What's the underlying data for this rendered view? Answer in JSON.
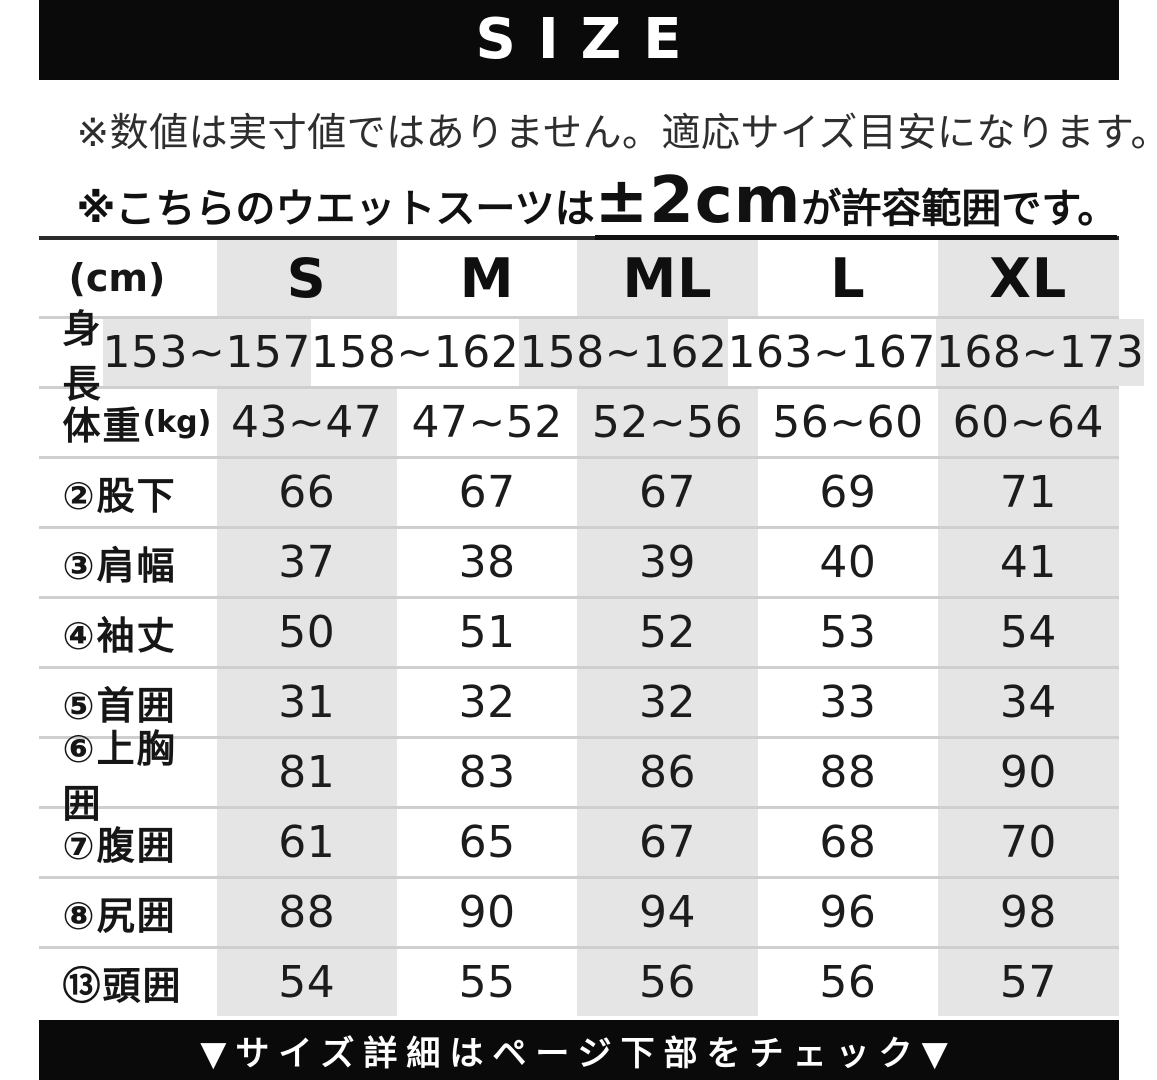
{
  "banner_top": {
    "title": "SIZE"
  },
  "notes": {
    "line1": "※数値は実寸値ではありません。適応サイズ目安になります。",
    "line2_prefix": "※こちらのウエットスーツは",
    "line2_highlight": "±2cm",
    "line2_suffix": "が許容範囲です。"
  },
  "size_table": {
    "unit_label": "(cm)",
    "columns": [
      "S",
      "M",
      "ML",
      "L",
      "XL"
    ],
    "rows": [
      {
        "label": "身長",
        "sub": "",
        "values": [
          "153~157",
          "158~162",
          "158~162",
          "163~167",
          "168~173"
        ]
      },
      {
        "label": "体重",
        "sub": "(kg)",
        "values": [
          "43~47",
          "47~52",
          "52~56",
          "56~60",
          "60~64"
        ]
      },
      {
        "label": "②股下",
        "sub": "",
        "values": [
          "66",
          "67",
          "67",
          "69",
          "71"
        ]
      },
      {
        "label": "③肩幅",
        "sub": "",
        "values": [
          "37",
          "38",
          "39",
          "40",
          "41"
        ]
      },
      {
        "label": "④袖丈",
        "sub": "",
        "values": [
          "50",
          "51",
          "52",
          "53",
          "54"
        ]
      },
      {
        "label": "⑤首囲",
        "sub": "",
        "values": [
          "31",
          "32",
          "32",
          "33",
          "34"
        ]
      },
      {
        "label": "⑥上胸囲",
        "sub": "",
        "values": [
          "81",
          "83",
          "86",
          "88",
          "90"
        ]
      },
      {
        "label": "⑦腹囲",
        "sub": "",
        "values": [
          "61",
          "65",
          "67",
          "68",
          "70"
        ]
      },
      {
        "label": "⑧尻囲",
        "sub": "",
        "values": [
          "88",
          "90",
          "94",
          "96",
          "98"
        ]
      },
      {
        "label": "⑬頭囲",
        "sub": "",
        "values": [
          "54",
          "55",
          "56",
          "56",
          "57"
        ]
      }
    ]
  },
  "banner_bottom": {
    "text": "▼サイズ詳細はページ下部をチェック▼"
  },
  "colors": {
    "banner_bg": "#0a0a0a",
    "stripe_gray": "#e5e5e5",
    "separator": "#cfcfcf",
    "table_top_border": "#2b2b2b",
    "text_primary": "#1c1c1c"
  }
}
